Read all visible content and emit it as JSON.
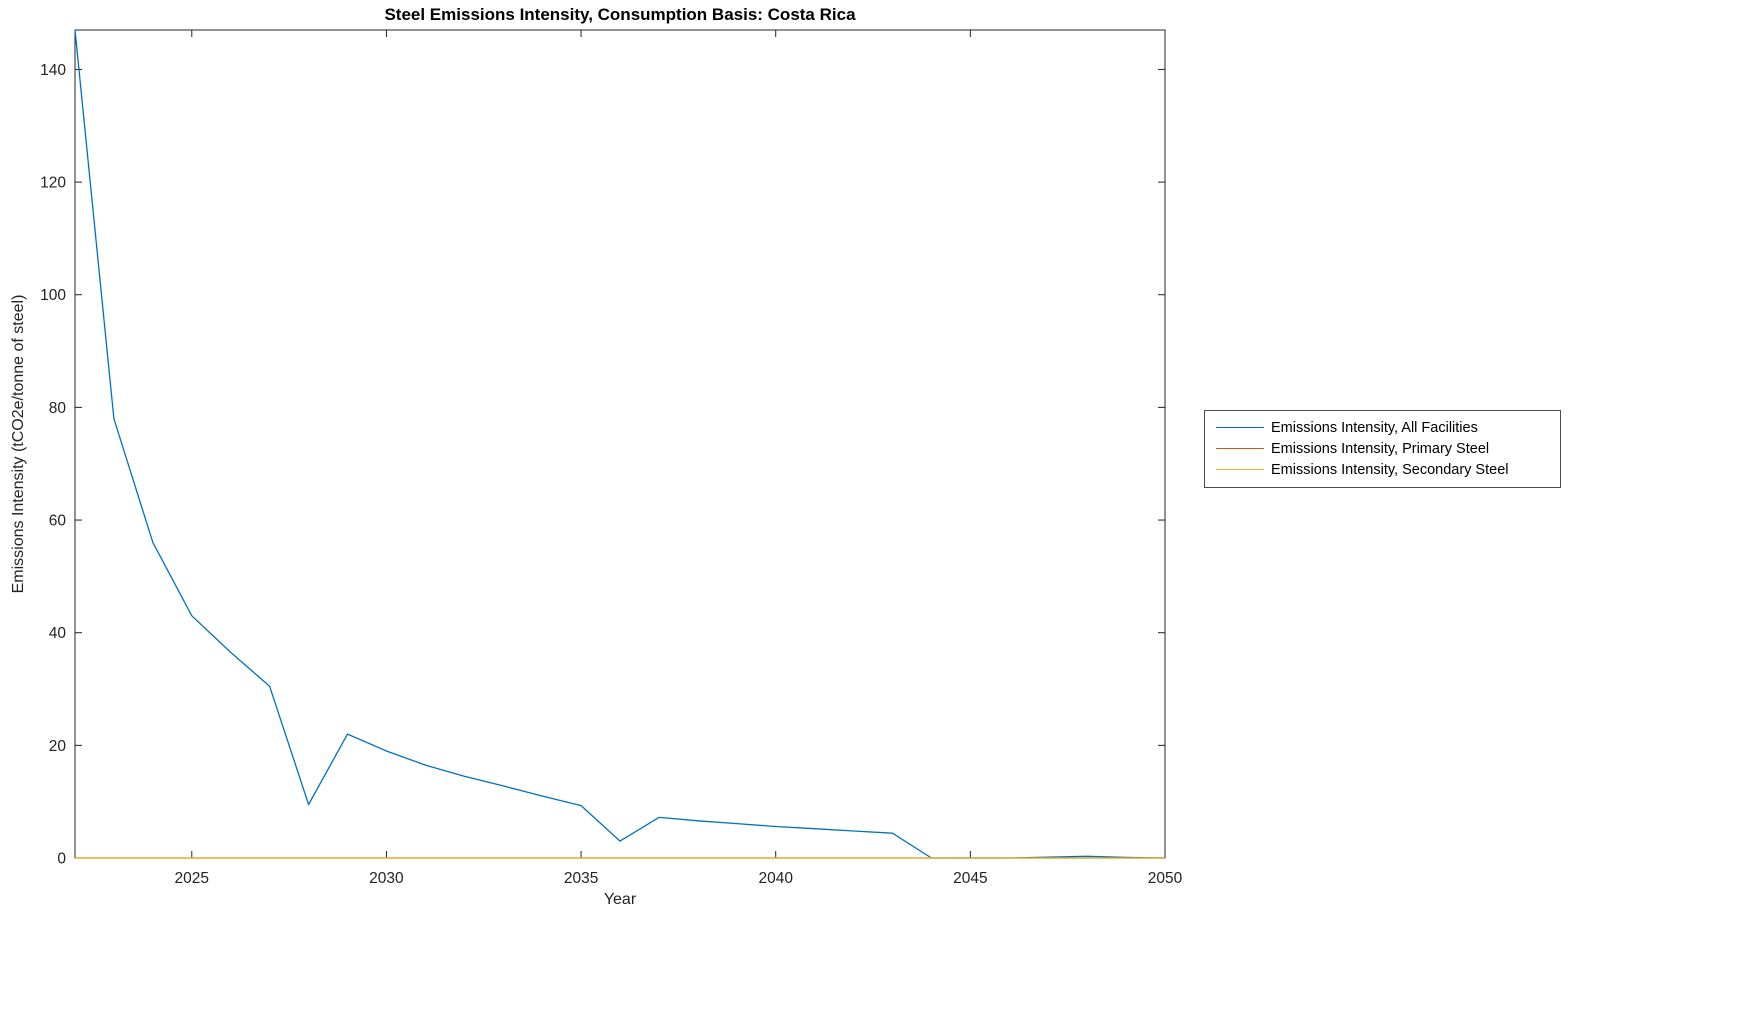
{
  "figure": {
    "title": "Steel Emissions Intensity, Consumption Basis: Costa Rica"
  },
  "chart_data": {
    "type": "line",
    "title": "Steel Emissions Intensity, Consumption Basis: Costa Rica",
    "xlabel": "Year",
    "ylabel": "Emissions Intensity (tCO2e/tonne of steel)",
    "xlim": [
      2022,
      2050
    ],
    "ylim": [
      0,
      147
    ],
    "xticks": [
      2025,
      2030,
      2035,
      2040,
      2045,
      2050
    ],
    "yticks": [
      0,
      20,
      40,
      60,
      80,
      100,
      120,
      140
    ],
    "grid": false,
    "legend_position": "outside-right",
    "background": "#ffffff",
    "axis_color": "#232323",
    "x": [
      2022,
      2023,
      2024,
      2025,
      2026,
      2027,
      2028,
      2029,
      2030,
      2031,
      2032,
      2033,
      2034,
      2035,
      2036,
      2037,
      2038,
      2039,
      2040,
      2041,
      2042,
      2043,
      2044,
      2045,
      2046,
      2047,
      2048,
      2049,
      2050
    ],
    "series": [
      {
        "name": "Emissions Intensity, All Facilities",
        "color": "#0072BD",
        "values": [
          147,
          78,
          56,
          43,
          36.5,
          30.5,
          9.5,
          22,
          19,
          16.5,
          14.5,
          12.8,
          11,
          9.3,
          3,
          7.2,
          6.6,
          6.1,
          5.6,
          5.2,
          4.8,
          4.4,
          0,
          0,
          0,
          0.15,
          0.3,
          0.1,
          0
        ]
      },
      {
        "name": "Emissions Intensity, Primary Steel",
        "color": "#D95319",
        "values": [
          0,
          0,
          0,
          0,
          0,
          0,
          0,
          0,
          0,
          0,
          0,
          0,
          0,
          0,
          0,
          0,
          0,
          0,
          0,
          0,
          0,
          0,
          0,
          0,
          0,
          0,
          0,
          0,
          0
        ]
      },
      {
        "name": "Emissions Intensity, Secondary Steel",
        "color": "#EDB120",
        "values": [
          0,
          0,
          0,
          0,
          0,
          0,
          0,
          0,
          0,
          0,
          0,
          0,
          0,
          0,
          0,
          0,
          0,
          0,
          0,
          0,
          0,
          0,
          0,
          0,
          0,
          0,
          0,
          0,
          0
        ]
      }
    ]
  }
}
